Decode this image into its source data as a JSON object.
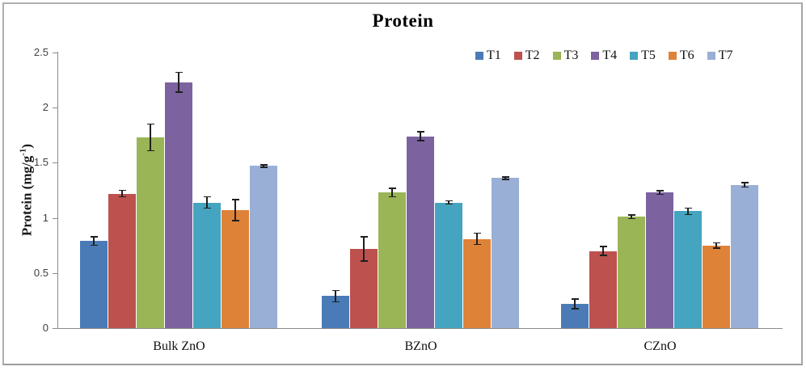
{
  "chart_data": {
    "type": "bar",
    "title": "Protein",
    "ylabel_prefix": "Protein (mg/g",
    "ylabel_superscript": "-1",
    "ylabel_suffix": ")",
    "categories": [
      "Bulk ZnO",
      "BZnO",
      "CZnO"
    ],
    "series": [
      {
        "name": "T1",
        "color": "#4A7BB7",
        "values": [
          0.79,
          0.29,
          0.22
        ],
        "errors": [
          0.04,
          0.05,
          0.045
        ]
      },
      {
        "name": "T2",
        "color": "#BC514E",
        "values": [
          1.22,
          0.72,
          0.7
        ],
        "errors": [
          0.03,
          0.11,
          0.04
        ]
      },
      {
        "name": "T3",
        "color": "#99B556",
        "values": [
          1.73,
          1.23,
          1.01
        ],
        "errors": [
          0.12,
          0.04,
          0.015
        ]
      },
      {
        "name": "T4",
        "color": "#7D62A0",
        "values": [
          2.23,
          1.74,
          1.23
        ],
        "errors": [
          0.09,
          0.04,
          0.015
        ]
      },
      {
        "name": "T5",
        "color": "#45A4BF",
        "values": [
          1.14,
          1.14,
          1.06
        ],
        "errors": [
          0.05,
          0.015,
          0.03
        ]
      },
      {
        "name": "T6",
        "color": "#DE8238",
        "values": [
          1.07,
          0.81,
          0.75
        ],
        "errors": [
          0.095,
          0.05,
          0.025
        ]
      },
      {
        "name": "T7",
        "color": "#99AFD5",
        "values": [
          1.47,
          1.36,
          1.3
        ],
        "errors": [
          0.012,
          0.012,
          0.02
        ]
      }
    ],
    "ytick_labels": [
      "0",
      "0.5",
      "1",
      "1.5",
      "2",
      "2.5"
    ],
    "ylim": [
      0,
      2.5
    ],
    "grid": false,
    "legend_position": "top-right",
    "error_bar_color": "#1F1F1F",
    "axis_color": "#8C8C8C",
    "frame_border_color": "#AFAFAF",
    "background_color": "#FFFFFF"
  }
}
